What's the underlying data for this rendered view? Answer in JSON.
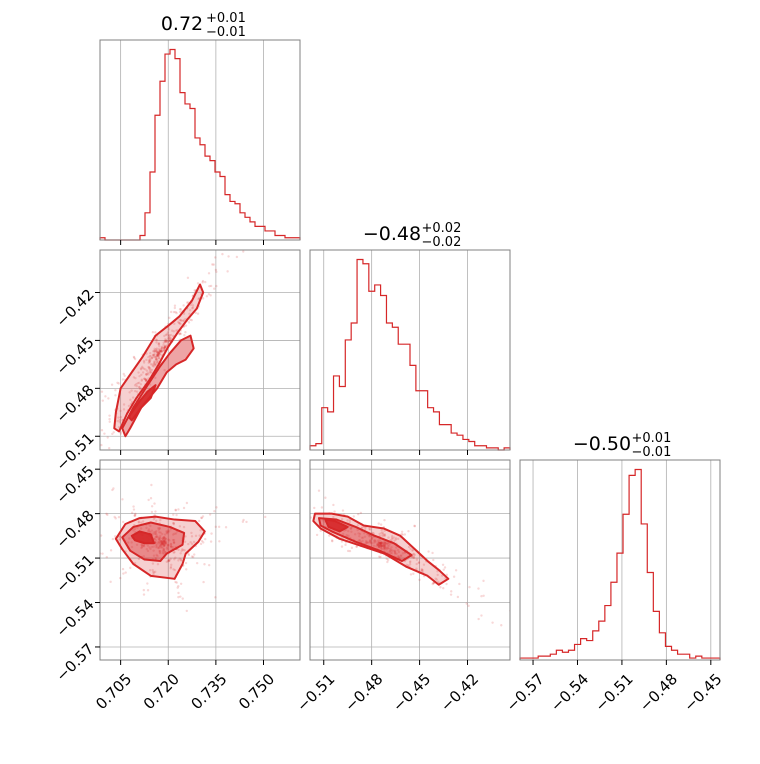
{
  "chart_data": {
    "type": "corner",
    "color": "#d62728",
    "grid": true,
    "titles": [
      {
        "value": "0.72",
        "upper": "+0.01",
        "lower": "−0.01"
      },
      {
        "value": "−0.48",
        "upper": "+0.02",
        "lower": "−0.02"
      },
      {
        "value": "−0.50",
        "upper": "+0.01",
        "lower": "−0.01"
      }
    ],
    "params": [
      {
        "range": [
          0.6985,
          0.7615
        ],
        "ticks": [
          0.705,
          0.72,
          0.735,
          0.75
        ],
        "tick_labels": [
          "0.705",
          "0.720",
          "0.735",
          "0.750"
        ]
      },
      {
        "range": [
          -0.5186,
          -0.3934
        ],
        "ticks": [
          -0.51,
          -0.48,
          -0.45,
          -0.42
        ],
        "tick_labels": [
          "−0.51",
          "−0.48",
          "−0.45",
          "−0.42"
        ]
      },
      {
        "range": [
          -0.5788,
          -0.4438
        ],
        "ticks": [
          -0.57,
          -0.54,
          -0.51,
          -0.48,
          -0.45
        ],
        "tick_labels": [
          "−0.57",
          "−0.54",
          "−0.51",
          "−0.48",
          "−0.45"
        ]
      }
    ],
    "histograms": [
      {
        "param": 0,
        "counts": [
          1,
          0,
          0,
          0,
          0,
          0,
          0,
          0,
          2,
          12,
          30,
          55,
          70,
          82,
          84,
          80,
          65,
          60,
          58,
          45,
          42,
          37,
          35,
          30,
          28,
          20,
          17,
          16,
          12,
          10,
          8,
          6,
          6,
          4,
          4,
          2,
          2,
          1,
          1,
          1
        ]
      },
      {
        "param": 1,
        "counts": [
          2,
          3,
          20,
          18,
          35,
          30,
          52,
          60,
          90,
          88,
          75,
          78,
          73,
          60,
          58,
          50,
          50,
          40,
          28,
          28,
          20,
          18,
          12,
          12,
          8,
          7,
          5,
          4,
          2,
          2,
          1,
          1,
          0,
          1
        ]
      },
      {
        "param": 2,
        "counts": [
          1,
          1,
          1,
          2,
          2,
          3,
          5,
          4,
          5,
          8,
          11,
          10,
          15,
          20,
          28,
          40,
          55,
          75,
          95,
          98,
          70,
          45,
          25,
          14,
          7,
          5,
          3,
          3,
          1,
          2,
          1,
          1,
          1
        ]
      }
    ],
    "pairs": [
      {
        "x_param": 0,
        "y_param": 1,
        "levels": [
          {
            "points": [
              [
                0.7045,
                -0.507
              ],
              [
                0.707,
                -0.496
              ],
              [
                0.71,
                -0.486
              ],
              [
                0.714,
                -0.475
              ],
              [
                0.717,
                -0.465
              ],
              [
                0.72,
                -0.454
              ],
              [
                0.723,
                -0.445
              ],
              [
                0.726,
                -0.437
              ],
              [
                0.729,
                -0.43
              ],
              [
                0.731,
                -0.42
              ],
              [
                0.73,
                -0.415
              ],
              [
                0.7275,
                -0.425
              ],
              [
                0.7235,
                -0.435
              ],
              [
                0.7205,
                -0.44
              ],
              [
                0.716,
                -0.447
              ],
              [
                0.712,
                -0.46
              ],
              [
                0.7085,
                -0.47
              ],
              [
                0.705,
                -0.48
              ],
              [
                0.7035,
                -0.495
              ],
              [
                0.703,
                -0.505
              ]
            ]
          },
          {
            "points": [
              [
                0.7055,
                -0.505
              ],
              [
                0.709,
                -0.492
              ],
              [
                0.7135,
                -0.478
              ],
              [
                0.7175,
                -0.466
              ],
              [
                0.7205,
                -0.458
              ],
              [
                0.724,
                -0.45
              ],
              [
                0.727,
                -0.447
              ],
              [
                0.728,
                -0.455
              ],
              [
                0.7255,
                -0.462
              ],
              [
                0.7225,
                -0.465
              ],
              [
                0.7195,
                -0.47
              ],
              [
                0.7165,
                -0.48
              ],
              [
                0.7115,
                -0.492
              ],
              [
                0.708,
                -0.505
              ],
              [
                0.7065,
                -0.51
              ]
            ]
          },
          {
            "points": [
              [
                0.7075,
                -0.498
              ],
              [
                0.711,
                -0.488
              ],
              [
                0.7135,
                -0.482
              ],
              [
                0.716,
                -0.478
              ],
              [
                0.7145,
                -0.486
              ],
              [
                0.7115,
                -0.492
              ],
              [
                0.7085,
                -0.5
              ]
            ]
          }
        ]
      },
      {
        "x_param": 0,
        "y_param": 2,
        "levels": [
          {
            "points": [
              [
                0.7035,
                -0.497
              ],
              [
                0.7065,
                -0.487
              ],
              [
                0.711,
                -0.483
              ],
              [
                0.716,
                -0.482
              ],
              [
                0.722,
                -0.484
              ],
              [
                0.7285,
                -0.485
              ],
              [
                0.7315,
                -0.492
              ],
              [
                0.7295,
                -0.499
              ],
              [
                0.7255,
                -0.507
              ],
              [
                0.7245,
                -0.514
              ],
              [
                0.722,
                -0.524
              ],
              [
                0.7145,
                -0.522
              ],
              [
                0.709,
                -0.514
              ],
              [
                0.7055,
                -0.504
              ]
            ]
          },
          {
            "points": [
              [
                0.7055,
                -0.496
              ],
              [
                0.709,
                -0.489
              ],
              [
                0.7145,
                -0.486
              ],
              [
                0.7205,
                -0.489
              ],
              [
                0.725,
                -0.493
              ],
              [
                0.7245,
                -0.501
              ],
              [
                0.7195,
                -0.507
              ],
              [
                0.7175,
                -0.512
              ],
              [
                0.7125,
                -0.511
              ],
              [
                0.708,
                -0.505
              ]
            ]
          },
          {
            "points": [
              [
                0.7085,
                -0.495
              ],
              [
                0.711,
                -0.492
              ],
              [
                0.7145,
                -0.494
              ],
              [
                0.7155,
                -0.5
              ],
              [
                0.7125,
                -0.5
              ],
              [
                0.7095,
                -0.498
              ]
            ]
          }
        ]
      },
      {
        "x_param": 1,
        "y_param": 2,
        "levels": [
          {
            "points": [
              [
                -0.5155,
                -0.48
              ],
              [
                -0.505,
                -0.48
              ],
              [
                -0.495,
                -0.482
              ],
              [
                -0.485,
                -0.488
              ],
              [
                -0.4725,
                -0.49
              ],
              [
                -0.462,
                -0.495
              ],
              [
                -0.452,
                -0.505
              ],
              [
                -0.445,
                -0.512
              ],
              [
                -0.438,
                -0.518
              ],
              [
                -0.432,
                -0.524
              ],
              [
                -0.438,
                -0.528
              ],
              [
                -0.445,
                -0.522
              ],
              [
                -0.458,
                -0.516
              ],
              [
                -0.472,
                -0.507
              ],
              [
                -0.486,
                -0.502
              ],
              [
                -0.5,
                -0.497
              ],
              [
                -0.512,
                -0.49
              ],
              [
                -0.5165,
                -0.485
              ]
            ]
          },
          {
            "points": [
              [
                -0.513,
                -0.483
              ],
              [
                -0.502,
                -0.484
              ],
              [
                -0.49,
                -0.489
              ],
              [
                -0.478,
                -0.495
              ],
              [
                -0.466,
                -0.5
              ],
              [
                -0.455,
                -0.508
              ],
              [
                -0.461,
                -0.512
              ],
              [
                -0.475,
                -0.505
              ],
              [
                -0.49,
                -0.499
              ],
              [
                -0.505,
                -0.492
              ],
              [
                -0.512,
                -0.488
              ]
            ]
          },
          {
            "points": [
              [
                -0.509,
                -0.484
              ],
              [
                -0.503,
                -0.485
              ],
              [
                -0.495,
                -0.489
              ],
              [
                -0.5,
                -0.492
              ],
              [
                -0.507,
                -0.489
              ]
            ]
          }
        ]
      }
    ]
  }
}
